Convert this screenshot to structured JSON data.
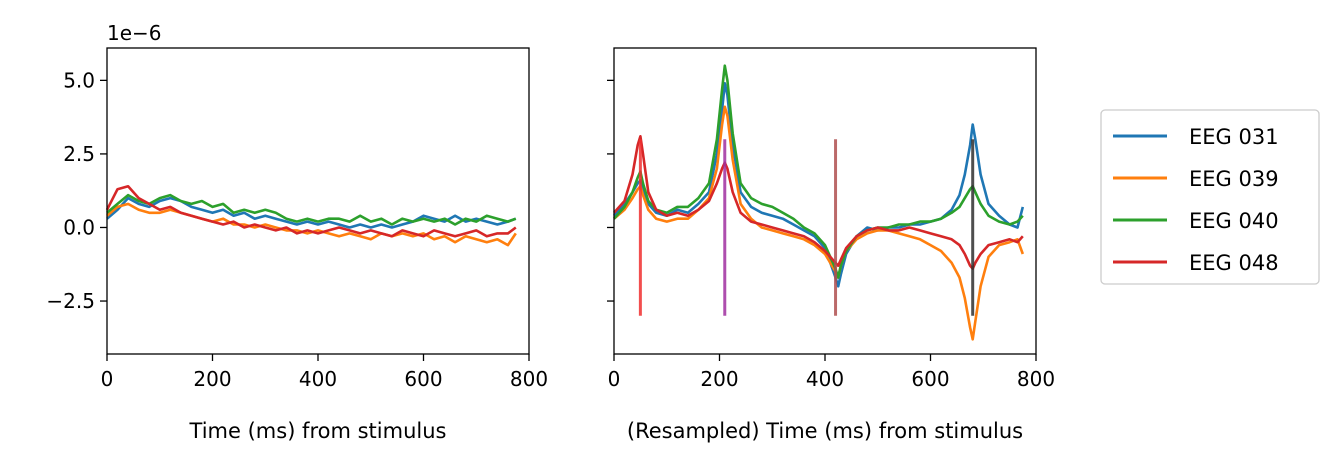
{
  "chart_data": [
    {
      "type": "line",
      "title": "",
      "xlabel": "Time (ms) from stimulus",
      "ylabel": "",
      "offset_text": "1e−6",
      "xlim": [
        0,
        800
      ],
      "ylim": [
        -4.3,
        6.1
      ],
      "xticks": [
        0,
        200,
        400,
        600,
        800
      ],
      "xtick_labels": [
        "0",
        "200",
        "400",
        "600",
        "800"
      ],
      "yticks": [
        5.0,
        2.5,
        0.0,
        -2.5
      ],
      "ytick_labels": [
        "5.0",
        "2.5",
        "0.0",
        "−2.5"
      ],
      "grid": false,
      "series": [
        {
          "name": "EEG 031",
          "color": "#1f77b4",
          "x": [
            0,
            20,
            40,
            60,
            80,
            100,
            120,
            140,
            160,
            180,
            200,
            220,
            240,
            260,
            280,
            300,
            320,
            340,
            360,
            380,
            400,
            420,
            440,
            460,
            480,
            500,
            520,
            540,
            560,
            580,
            600,
            620,
            640,
            660,
            680,
            700,
            720,
            740,
            760,
            775
          ],
          "y": [
            0.3,
            0.6,
            1.0,
            0.8,
            0.7,
            0.9,
            1.0,
            0.9,
            0.7,
            0.6,
            0.5,
            0.6,
            0.4,
            0.5,
            0.3,
            0.4,
            0.3,
            0.2,
            0.1,
            0.2,
            0.1,
            0.2,
            0.1,
            0.0,
            0.1,
            0.0,
            0.1,
            0.0,
            0.1,
            0.2,
            0.4,
            0.3,
            0.2,
            0.4,
            0.2,
            0.3,
            0.2,
            0.1,
            0.2,
            0.3
          ]
        },
        {
          "name": "EEG 039",
          "color": "#ff7f0e",
          "x": [
            0,
            20,
            40,
            60,
            80,
            100,
            120,
            140,
            160,
            180,
            200,
            220,
            240,
            260,
            280,
            300,
            320,
            340,
            360,
            380,
            400,
            420,
            440,
            460,
            480,
            500,
            520,
            540,
            560,
            580,
            600,
            620,
            640,
            660,
            680,
            700,
            720,
            740,
            760,
            775
          ],
          "y": [
            0.4,
            0.7,
            0.8,
            0.6,
            0.5,
            0.5,
            0.6,
            0.5,
            0.4,
            0.3,
            0.2,
            0.3,
            0.1,
            0.1,
            0.0,
            0.1,
            0.0,
            -0.1,
            -0.1,
            -0.2,
            -0.1,
            -0.2,
            -0.3,
            -0.2,
            -0.3,
            -0.4,
            -0.2,
            -0.3,
            -0.2,
            -0.3,
            -0.2,
            -0.4,
            -0.3,
            -0.5,
            -0.3,
            -0.4,
            -0.5,
            -0.4,
            -0.6,
            -0.2
          ]
        },
        {
          "name": "EEG 040",
          "color": "#2ca02c",
          "x": [
            0,
            20,
            40,
            60,
            80,
            100,
            120,
            140,
            160,
            180,
            200,
            220,
            240,
            260,
            280,
            300,
            320,
            340,
            360,
            380,
            400,
            420,
            440,
            460,
            480,
            500,
            520,
            540,
            560,
            580,
            600,
            620,
            640,
            660,
            680,
            700,
            720,
            740,
            760,
            775
          ],
          "y": [
            0.5,
            0.8,
            1.1,
            0.9,
            0.8,
            1.0,
            1.1,
            0.9,
            0.8,
            0.9,
            0.7,
            0.8,
            0.5,
            0.6,
            0.5,
            0.6,
            0.5,
            0.3,
            0.2,
            0.3,
            0.2,
            0.3,
            0.3,
            0.2,
            0.4,
            0.2,
            0.3,
            0.1,
            0.3,
            0.2,
            0.3,
            0.2,
            0.3,
            0.1,
            0.3,
            0.2,
            0.4,
            0.3,
            0.2,
            0.3
          ]
        },
        {
          "name": "EEG 048",
          "color": "#d62728",
          "x": [
            0,
            20,
            40,
            60,
            80,
            100,
            120,
            140,
            160,
            180,
            200,
            220,
            240,
            260,
            280,
            300,
            320,
            340,
            360,
            380,
            400,
            420,
            440,
            460,
            480,
            500,
            520,
            540,
            560,
            580,
            600,
            620,
            640,
            660,
            680,
            700,
            720,
            740,
            760,
            775
          ],
          "y": [
            0.6,
            1.3,
            1.4,
            1.0,
            0.8,
            0.6,
            0.7,
            0.5,
            0.4,
            0.3,
            0.2,
            0.1,
            0.2,
            0.0,
            0.1,
            0.0,
            -0.1,
            0.0,
            -0.2,
            -0.1,
            -0.2,
            -0.1,
            0.0,
            -0.1,
            -0.2,
            -0.1,
            -0.2,
            -0.3,
            -0.1,
            -0.2,
            -0.3,
            -0.1,
            -0.2,
            -0.3,
            -0.2,
            -0.1,
            -0.3,
            -0.2,
            -0.2,
            0.0
          ]
        }
      ]
    },
    {
      "type": "line",
      "title": "",
      "xlabel": "(Resampled) Time (ms) from stimulus",
      "ylabel": "",
      "xlim": [
        0,
        800
      ],
      "ylim": [
        -4.3,
        6.1
      ],
      "xticks": [
        0,
        200,
        400,
        600,
        800
      ],
      "xtick_labels": [
        "0",
        "200",
        "400",
        "600",
        "800"
      ],
      "yticks": [
        5.0,
        2.5,
        0.0,
        -2.5
      ],
      "shared_y": true,
      "grid": false,
      "series": [
        {
          "name": "EEG 031",
          "color": "#1f77b4",
          "x": [
            0,
            20,
            35,
            45,
            50,
            55,
            65,
            80,
            100,
            120,
            140,
            160,
            180,
            195,
            205,
            210,
            215,
            225,
            240,
            260,
            280,
            300,
            320,
            340,
            360,
            380,
            400,
            410,
            420,
            425,
            430,
            440,
            460,
            480,
            500,
            520,
            540,
            560,
            580,
            600,
            620,
            640,
            655,
            665,
            675,
            680,
            685,
            695,
            710,
            730,
            750,
            765,
            775
          ],
          "y": [
            0.4,
            0.8,
            1.2,
            1.5,
            1.6,
            1.3,
            0.8,
            0.5,
            0.4,
            0.6,
            0.5,
            0.8,
            1.2,
            2.5,
            4.0,
            4.9,
            4.5,
            2.8,
            1.2,
            0.7,
            0.5,
            0.4,
            0.3,
            0.1,
            -0.1,
            -0.3,
            -0.7,
            -1.2,
            -1.7,
            -2.0,
            -1.6,
            -0.9,
            -0.3,
            0.0,
            -0.1,
            0.0,
            0.0,
            0.1,
            0.1,
            0.2,
            0.3,
            0.6,
            1.1,
            1.8,
            2.8,
            3.5,
            3.0,
            1.8,
            0.8,
            0.4,
            0.1,
            0.0,
            0.7
          ]
        },
        {
          "name": "EEG 039",
          "color": "#ff7f0e",
          "x": [
            0,
            20,
            35,
            45,
            50,
            55,
            65,
            80,
            100,
            120,
            140,
            160,
            180,
            195,
            205,
            210,
            215,
            225,
            240,
            260,
            280,
            300,
            320,
            340,
            360,
            380,
            400,
            410,
            420,
            425,
            430,
            440,
            460,
            480,
            500,
            520,
            540,
            560,
            580,
            600,
            620,
            640,
            655,
            665,
            675,
            680,
            685,
            695,
            710,
            730,
            750,
            765,
            775
          ],
          "y": [
            0.3,
            0.6,
            1.0,
            1.3,
            1.4,
            1.1,
            0.6,
            0.3,
            0.2,
            0.3,
            0.3,
            0.6,
            1.0,
            2.0,
            3.5,
            4.1,
            3.8,
            2.3,
            0.8,
            0.3,
            0.0,
            -0.1,
            -0.2,
            -0.3,
            -0.4,
            -0.6,
            -0.9,
            -1.2,
            -1.5,
            -1.7,
            -1.3,
            -0.8,
            -0.4,
            -0.2,
            -0.1,
            -0.1,
            -0.2,
            -0.3,
            -0.4,
            -0.6,
            -0.8,
            -1.2,
            -1.7,
            -2.4,
            -3.4,
            -3.8,
            -3.2,
            -2.0,
            -1.0,
            -0.6,
            -0.5,
            -0.4,
            -0.9
          ]
        },
        {
          "name": "EEG 040",
          "color": "#2ca02c",
          "x": [
            0,
            20,
            35,
            45,
            50,
            55,
            65,
            80,
            100,
            120,
            140,
            160,
            180,
            195,
            205,
            210,
            215,
            225,
            240,
            260,
            280,
            300,
            320,
            340,
            360,
            380,
            400,
            410,
            420,
            425,
            430,
            440,
            460,
            480,
            500,
            520,
            540,
            560,
            580,
            600,
            620,
            640,
            655,
            665,
            675,
            680,
            685,
            695,
            710,
            730,
            750,
            765,
            775
          ],
          "y": [
            0.3,
            0.7,
            1.2,
            1.7,
            1.9,
            1.5,
            0.9,
            0.6,
            0.5,
            0.7,
            0.7,
            1.0,
            1.5,
            3.0,
            4.7,
            5.5,
            5.0,
            3.2,
            1.5,
            1.0,
            0.8,
            0.7,
            0.5,
            0.3,
            0.0,
            -0.2,
            -0.6,
            -1.0,
            -1.4,
            -1.7,
            -1.3,
            -0.8,
            -0.3,
            -0.1,
            0.0,
            0.0,
            0.1,
            0.1,
            0.2,
            0.2,
            0.3,
            0.5,
            0.7,
            1.0,
            1.3,
            1.4,
            1.2,
            0.8,
            0.4,
            0.2,
            0.1,
            0.2,
            0.4
          ]
        },
        {
          "name": "EEG 048",
          "color": "#d62728",
          "x": [
            0,
            20,
            35,
            45,
            50,
            55,
            65,
            80,
            100,
            120,
            140,
            160,
            180,
            195,
            205,
            210,
            215,
            225,
            240,
            260,
            280,
            300,
            320,
            340,
            360,
            380,
            400,
            410,
            420,
            425,
            430,
            440,
            460,
            480,
            500,
            520,
            540,
            560,
            580,
            600,
            620,
            640,
            655,
            665,
            675,
            680,
            685,
            695,
            710,
            730,
            750,
            765,
            775
          ],
          "y": [
            0.5,
            0.9,
            1.8,
            2.8,
            3.1,
            2.5,
            1.2,
            0.6,
            0.4,
            0.5,
            0.4,
            0.6,
            0.9,
            1.5,
            2.0,
            2.2,
            2.0,
            1.2,
            0.5,
            0.2,
            0.1,
            0.0,
            -0.1,
            -0.2,
            -0.3,
            -0.5,
            -0.8,
            -1.0,
            -1.2,
            -1.3,
            -1.1,
            -0.7,
            -0.3,
            -0.1,
            0.0,
            -0.1,
            -0.1,
            0.0,
            -0.1,
            -0.2,
            -0.3,
            -0.4,
            -0.6,
            -0.9,
            -1.3,
            -1.4,
            -1.2,
            -0.9,
            -0.6,
            -0.5,
            -0.4,
            -0.5,
            -0.3
          ]
        }
      ],
      "markers": [
        {
          "x": 50,
          "y0": -3.0,
          "y1": 3.0,
          "color": "#f03030"
        },
        {
          "x": 210,
          "y0": -3.0,
          "y1": 3.0,
          "color": "#a030a0"
        },
        {
          "x": 420,
          "y0": -3.0,
          "y1": 3.0,
          "color": "#b05050"
        },
        {
          "x": 680,
          "y0": -3.0,
          "y1": 3.0,
          "color": "#303030"
        }
      ]
    }
  ],
  "legend": {
    "placement": "right",
    "entries": [
      {
        "name": "EEG 031",
        "color": "#1f77b4"
      },
      {
        "name": "EEG 039",
        "color": "#ff7f0e"
      },
      {
        "name": "EEG 040",
        "color": "#2ca02c"
      },
      {
        "name": "EEG 048",
        "color": "#d62728"
      }
    ]
  }
}
